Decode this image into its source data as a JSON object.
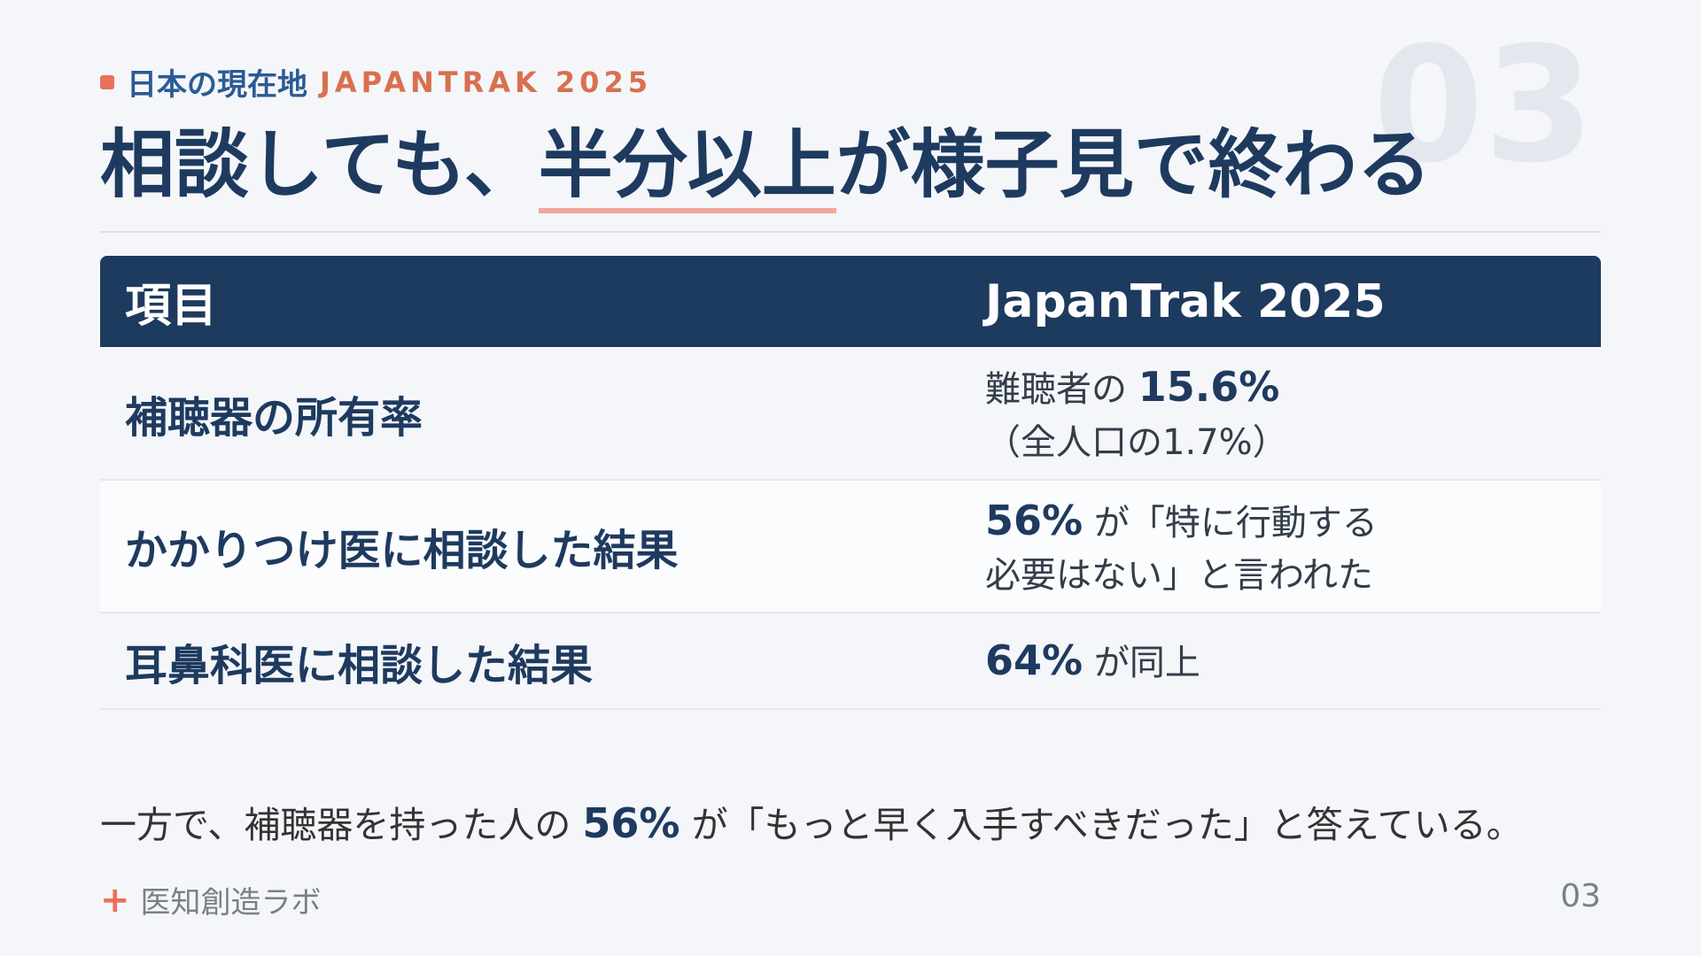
{
  "eyebrow": {
    "label": "日本の現在地",
    "source": "JAPANTRAK 2025"
  },
  "slide_number_watermark": "03",
  "title": {
    "before": "相談しても、",
    "highlight": "半分以上",
    "after": "が様子見で終わる"
  },
  "table": {
    "header": [
      "項目",
      "JapanTrak 2025"
    ],
    "rows": [
      {
        "label": "補聴器の所有率",
        "value": {
          "prefix": "難聴者の",
          "emphasis": "15.6%",
          "suffix": "",
          "note": "（全人口の1.7%）"
        }
      },
      {
        "label": "かかりつけ医に相談した結果",
        "value": {
          "prefix": "",
          "emphasis": "56%",
          "suffix": "が「特に行動する",
          "note": "必要はない」と言われた"
        }
      },
      {
        "label": "耳鼻科医に相談した結果",
        "value": {
          "prefix": "",
          "emphasis": "64%",
          "suffix": "が同上",
          "note": ""
        }
      }
    ]
  },
  "summary": {
    "before": "一方で、補聴器を持った人の",
    "emphasis": "56%",
    "after": "が「もっと早く入手すべきだった」と答えている。"
  },
  "footer": {
    "brand": "医知創造ラボ",
    "page": "03"
  }
}
